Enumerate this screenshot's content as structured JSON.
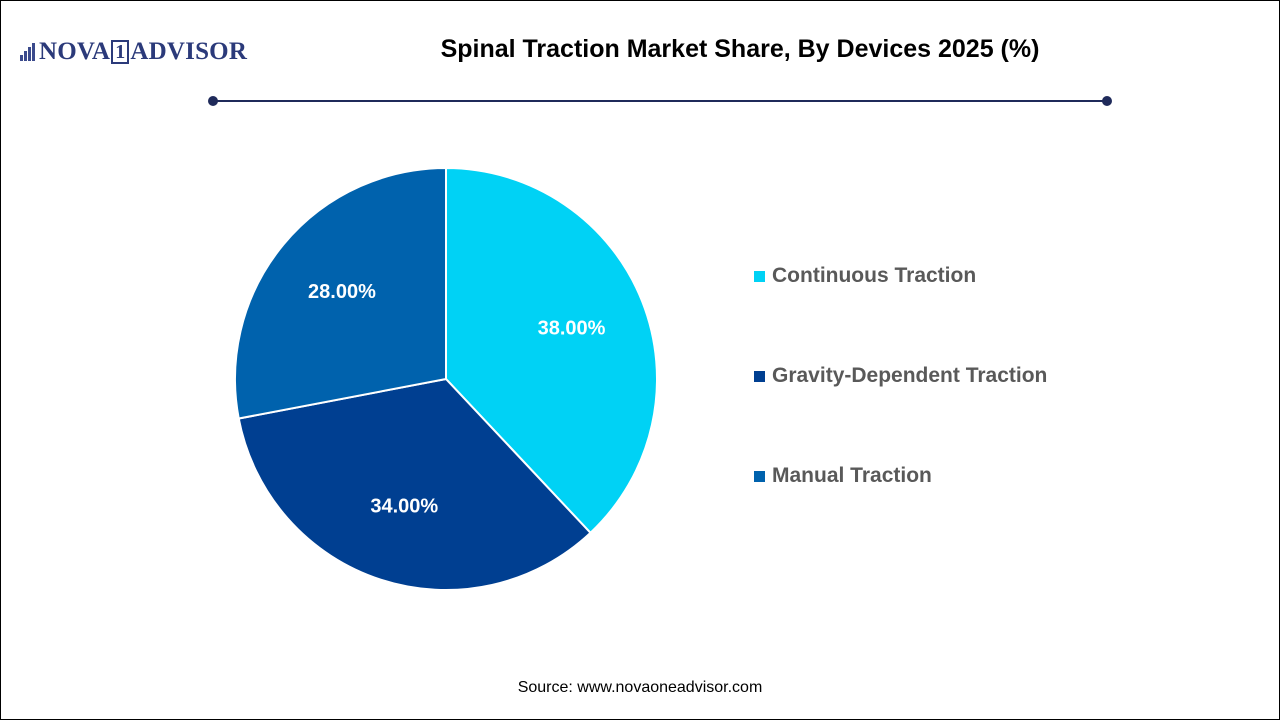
{
  "logo": {
    "text_before": "NOVA",
    "text_box": "1",
    "text_after": "ADVISOR"
  },
  "colors": {
    "rule": "#1f2a5a",
    "logo": "#2b3a7a"
  },
  "source": "Source: www.novaoneadvisor.com",
  "chart_data": {
    "type": "pie",
    "title": "Spinal Traction Market Share, By Devices 2025 (%)",
    "legend_position": "right",
    "slices": [
      {
        "label": "Continuous Traction",
        "value": 38.0,
        "display": "38.00%",
        "color": "#00d2f5"
      },
      {
        "label": "Gravity-Dependent Traction",
        "value": 34.0,
        "display": "34.00%",
        "color": "#003f91"
      },
      {
        "label": "Manual Traction",
        "value": 28.0,
        "display": "28.00%",
        "color": "#0062ad"
      }
    ]
  }
}
